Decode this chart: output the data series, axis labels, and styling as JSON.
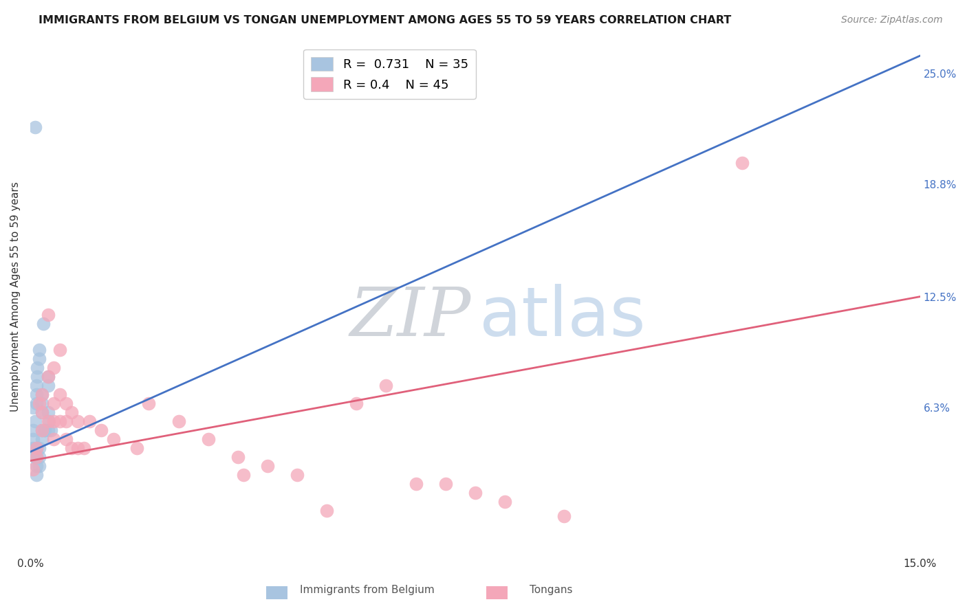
{
  "title": "IMMIGRANTS FROM BELGIUM VS TONGAN UNEMPLOYMENT AMONG AGES 55 TO 59 YEARS CORRELATION CHART",
  "source": "Source: ZipAtlas.com",
  "ylabel": "Unemployment Among Ages 55 to 59 years",
  "xlim": [
    0.0,
    0.15
  ],
  "ylim": [
    -0.02,
    0.27
  ],
  "ytick_positions": [
    0.0,
    0.063,
    0.125,
    0.188,
    0.25
  ],
  "ytick_labels": [
    "",
    "6.3%",
    "12.5%",
    "18.8%",
    "25.0%"
  ],
  "belgium_R": 0.731,
  "belgium_N": 35,
  "tongan_R": 0.4,
  "tongan_N": 45,
  "blue_color": "#a8c4e0",
  "blue_line_color": "#4472c4",
  "pink_color": "#f4a7b9",
  "pink_line_color": "#e0607a",
  "belgium_x": [
    0.0005,
    0.0008,
    0.001,
    0.001,
    0.001,
    0.0012,
    0.0012,
    0.0015,
    0.0015,
    0.002,
    0.002,
    0.002,
    0.0022,
    0.0025,
    0.003,
    0.003,
    0.003,
    0.0032,
    0.0005,
    0.0008,
    0.001,
    0.001,
    0.0015,
    0.0015,
    0.002,
    0.002,
    0.0025,
    0.003,
    0.0035,
    0.0005,
    0.001,
    0.0015,
    0.001,
    0.0005,
    0.0008
  ],
  "belgium_y": [
    0.063,
    0.055,
    0.075,
    0.07,
    0.065,
    0.085,
    0.08,
    0.095,
    0.09,
    0.07,
    0.065,
    0.06,
    0.11,
    0.05,
    0.08,
    0.075,
    0.05,
    0.055,
    0.04,
    0.035,
    0.03,
    0.025,
    0.035,
    0.03,
    0.05,
    0.045,
    0.05,
    0.06,
    0.05,
    0.045,
    0.04,
    0.04,
    0.035,
    0.05,
    0.22
  ],
  "tongan_x": [
    0.0005,
    0.001,
    0.001,
    0.0015,
    0.002,
    0.002,
    0.002,
    0.003,
    0.003,
    0.003,
    0.004,
    0.004,
    0.004,
    0.004,
    0.005,
    0.005,
    0.005,
    0.006,
    0.006,
    0.006,
    0.007,
    0.007,
    0.008,
    0.008,
    0.009,
    0.01,
    0.012,
    0.014,
    0.018,
    0.02,
    0.025,
    0.03,
    0.035,
    0.036,
    0.04,
    0.045,
    0.05,
    0.055,
    0.06,
    0.065,
    0.07,
    0.075,
    0.08,
    0.12,
    0.09
  ],
  "tongan_y": [
    0.028,
    0.04,
    0.035,
    0.065,
    0.07,
    0.06,
    0.05,
    0.115,
    0.08,
    0.055,
    0.085,
    0.065,
    0.055,
    0.045,
    0.095,
    0.07,
    0.055,
    0.065,
    0.055,
    0.045,
    0.06,
    0.04,
    0.055,
    0.04,
    0.04,
    0.055,
    0.05,
    0.045,
    0.04,
    0.065,
    0.055,
    0.045,
    0.035,
    0.025,
    0.03,
    0.025,
    0.005,
    0.065,
    0.075,
    0.02,
    0.02,
    0.015,
    0.01,
    0.2,
    0.002
  ],
  "blue_line_x0": 0.0,
  "blue_line_y0": 0.038,
  "blue_line_x1": 0.15,
  "blue_line_y1": 0.26,
  "pink_line_x0": 0.0,
  "pink_line_y0": 0.033,
  "pink_line_x1": 0.15,
  "pink_line_y1": 0.125
}
